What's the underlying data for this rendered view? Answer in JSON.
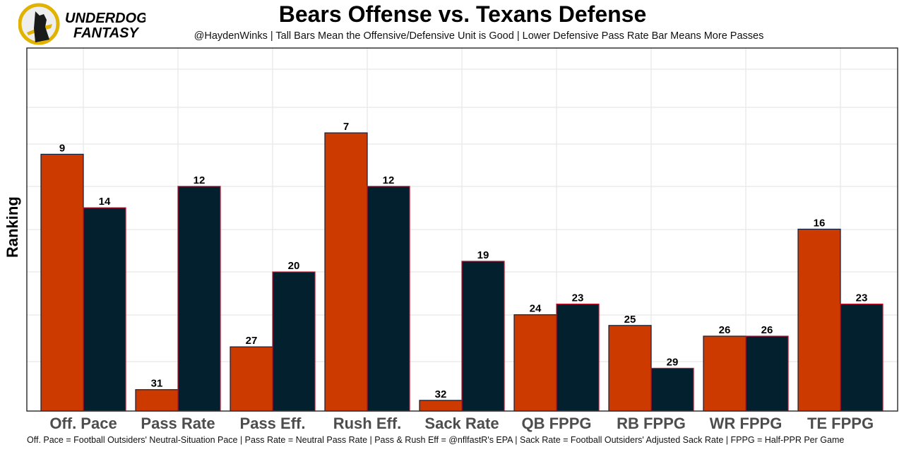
{
  "logo": {
    "line1": "UNDERDOG",
    "line2": "FANTASY"
  },
  "chart_data": {
    "type": "bar",
    "title": "Bears Offense vs. Texans Defense",
    "subtitle": "@HaydenWinks | Tall Bars Mean the Offensive/Defensive Unit is Good | Lower Defensive Pass Rate Bar Means More Passes",
    "ylabel": "Ranking",
    "xlabel": "",
    "caption": "Off. Pace = Football Outsiders' Neutral-Situation Pace | Pass Rate = Neutral Pass Rate | Pass & Rush Eff = @nflfastR's EPA | Sack Rate = Football Outsiders' Adjusted Sack Rate | FPPG = Half-PPR Per Game",
    "categories": [
      "Off. Pace",
      "Pass Rate",
      "Pass Eff.",
      "Rush Eff.",
      "Sack Rate",
      "QB FPPG",
      "RB FPPG",
      "WR FPPG",
      "TE FPPG"
    ],
    "series": [
      {
        "name": "Bears Offense",
        "color": "#CC3A00",
        "values": [
          9,
          31,
          27,
          7,
          32,
          24,
          25,
          26,
          16
        ]
      },
      {
        "name": "Texans Defense",
        "color": "#03202F",
        "values": [
          14,
          12,
          20,
          12,
          19,
          23,
          29,
          26,
          23
        ]
      }
    ],
    "bar_height_rule": "33 - rank",
    "grid": true,
    "legend": "none"
  }
}
